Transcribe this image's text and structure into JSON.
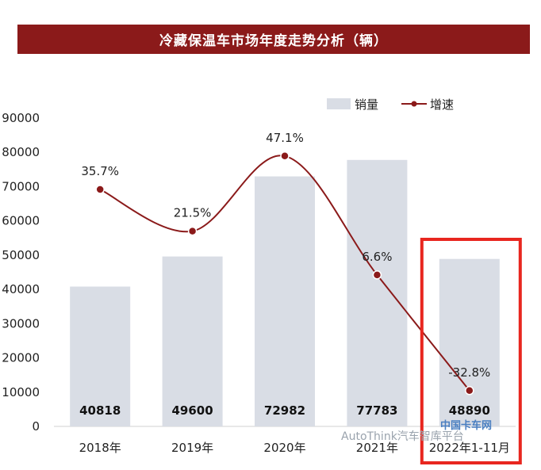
{
  "title": "冷藏保温车市场年度走势分析（辆）",
  "watermark_text": "AutoThink汽车智库平台",
  "logo_text": "中国卡车网",
  "colors": {
    "title_bg": "#8b1a1a",
    "bar": "#d9dde5",
    "line": "#8b1a1a",
    "highlight_box": "#e8261f"
  },
  "chart_data": {
    "type": "bar",
    "categories": [
      "2018年",
      "2019年",
      "2020年",
      "2021年",
      "2022年1-11月"
    ],
    "series": [
      {
        "name": "销量",
        "type": "bar",
        "values": [
          40818,
          49600,
          72982,
          77783,
          48890
        ]
      },
      {
        "name": "增速",
        "type": "line",
        "values": [
          35.7,
          21.5,
          47.1,
          6.6,
          -32.8
        ],
        "labels": [
          "35.7%",
          "21.5%",
          "47.1%",
          "6.6%",
          "-32.8%"
        ]
      }
    ],
    "yticks": [
      0,
      10000,
      20000,
      30000,
      40000,
      50000,
      60000,
      70000,
      80000,
      90000
    ],
    "ylim": [
      0,
      90000
    ],
    "line_ylim": [
      -45,
      60
    ],
    "legend": "top-right",
    "highlight_category": "2022年1-11月"
  }
}
